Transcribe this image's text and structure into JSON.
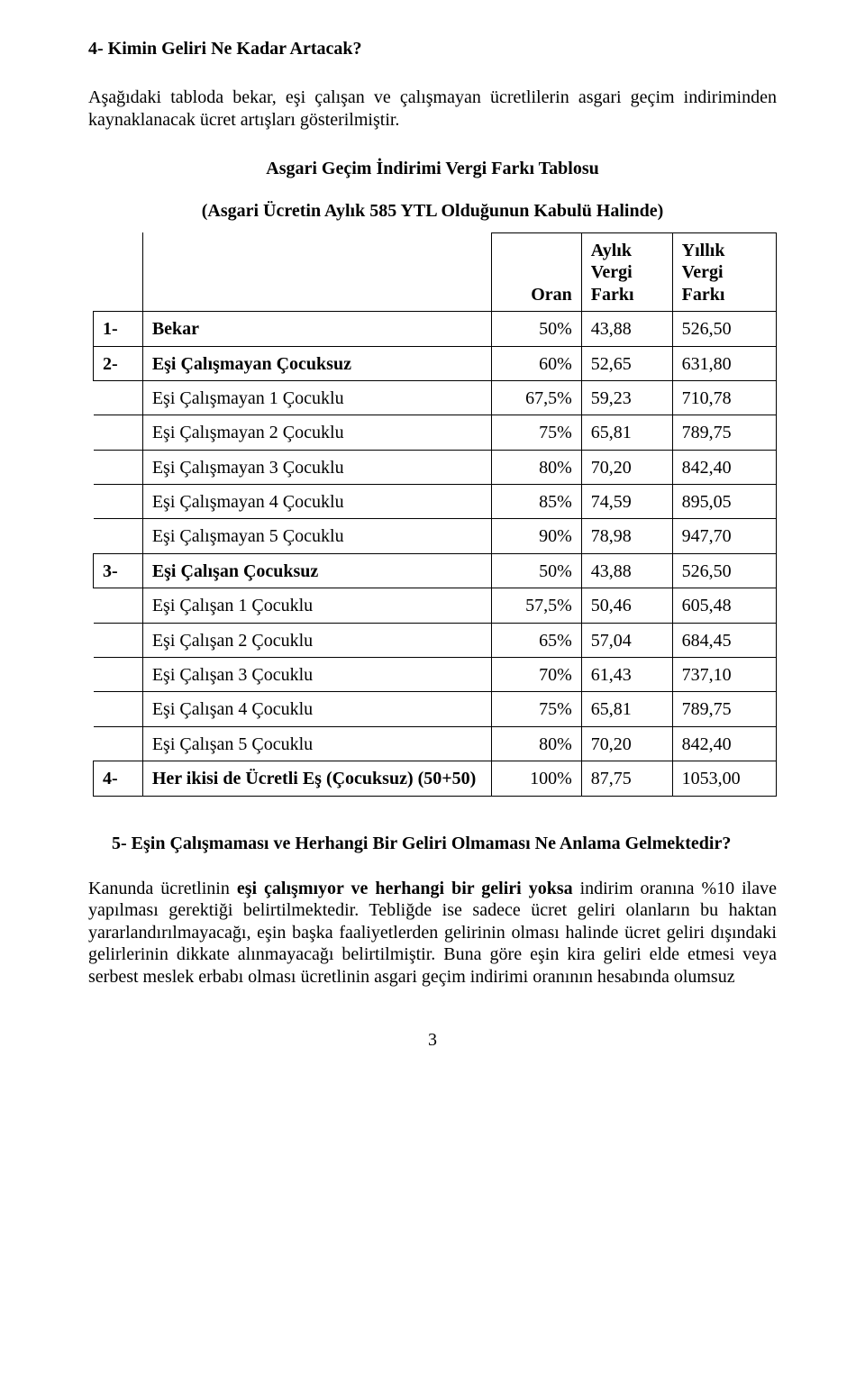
{
  "heading4": "4- Kimin Geliri Ne Kadar Artacak?",
  "intro": "Aşağıdaki tabloda bekar, eşi çalışan ve çalışmayan ücretlilerin asgari geçim indiriminden kaynaklanacak ücret artışları gösterilmiştir.",
  "table_title": "Asgari Geçim İndirimi Vergi Farkı Tablosu",
  "table_subtitle": "(Asgari Ücretin Aylık 585 YTL Olduğunun Kabulü Halinde)",
  "headers": {
    "oran": "Oran",
    "aylik_l1": "Aylık",
    "aylik_l2": "Vergi",
    "aylik_l3": "Farkı",
    "yillik_l1": "Yıllık",
    "yillik_l2": "Vergi",
    "yillik_l3": "Farkı"
  },
  "rows": [
    {
      "num": "1-",
      "label": "Bekar",
      "bold": true,
      "oran": "50%",
      "aylik": "43,88",
      "yillik": "526,50"
    },
    {
      "num": "2-",
      "label": "Eşi Çalışmayan Çocuksuz",
      "bold": true,
      "oran": "60%",
      "aylik": "52,65",
      "yillik": "631,80"
    },
    {
      "num": "",
      "label": "Eşi Çalışmayan 1 Çocuklu",
      "bold": false,
      "oran": "67,5%",
      "aylik": "59,23",
      "yillik": "710,78"
    },
    {
      "num": "",
      "label": "Eşi Çalışmayan 2 Çocuklu",
      "bold": false,
      "oran": "75%",
      "aylik": "65,81",
      "yillik": "789,75"
    },
    {
      "num": "",
      "label": "Eşi Çalışmayan 3 Çocuklu",
      "bold": false,
      "oran": "80%",
      "aylik": "70,20",
      "yillik": "842,40"
    },
    {
      "num": "",
      "label": "Eşi Çalışmayan 4 Çocuklu",
      "bold": false,
      "oran": "85%",
      "aylik": "74,59",
      "yillik": "895,05"
    },
    {
      "num": "",
      "label": "Eşi Çalışmayan 5 Çocuklu",
      "bold": false,
      "oran": "90%",
      "aylik": "78,98",
      "yillik": "947,70"
    },
    {
      "num": "3-",
      "label": "Eşi Çalışan Çocuksuz",
      "bold": true,
      "oran": "50%",
      "aylik": "43,88",
      "yillik": "526,50"
    },
    {
      "num": "",
      "label": "Eşi Çalışan 1 Çocuklu",
      "bold": false,
      "oran": "57,5%",
      "aylik": "50,46",
      "yillik": "605,48"
    },
    {
      "num": "",
      "label": "Eşi Çalışan 2 Çocuklu",
      "bold": false,
      "oran": "65%",
      "aylik": "57,04",
      "yillik": "684,45"
    },
    {
      "num": "",
      "label": "Eşi Çalışan 3 Çocuklu",
      "bold": false,
      "oran": "70%",
      "aylik": "61,43",
      "yillik": "737,10"
    },
    {
      "num": "",
      "label": "Eşi Çalışan 4 Çocuklu",
      "bold": false,
      "oran": "75%",
      "aylik": "65,81",
      "yillik": "789,75"
    },
    {
      "num": "",
      "label": "Eşi Çalışan 5 Çocuklu",
      "bold": false,
      "oran": "80%",
      "aylik": "70,20",
      "yillik": "842,40"
    },
    {
      "num": "4-",
      "label": "Her ikisi de Ücretli Eş (Çocuksuz) (50+50)",
      "bold": true,
      "oran": "100%",
      "aylik": "87,75",
      "yillik": "1053,00"
    }
  ],
  "heading5": "5- Eşin Çalışmaması ve Herhangi Bir Geliri Olmaması Ne Anlama Gelmektedir?",
  "para5": "Kanunda ücretlinin eşi çalışmıyor ve herhangi bir geliri yoksa indirim oranına %10 ilave yapılması gerektiği belirtilmektedir. Tebliğde ise sadece ücret geliri olanların bu haktan yararlandırılmayacağı, eşin başka faaliyetlerden gelirinin olması halinde ücret geliri dışındaki gelirlerinin dikkate alınmayacağı belirtilmiştir. Buna göre eşin kira geliri elde etmesi veya serbest meslek erbabı olması ücretlinin asgari geçim indirimi oranının hesabında olumsuz",
  "pagenum": "3"
}
